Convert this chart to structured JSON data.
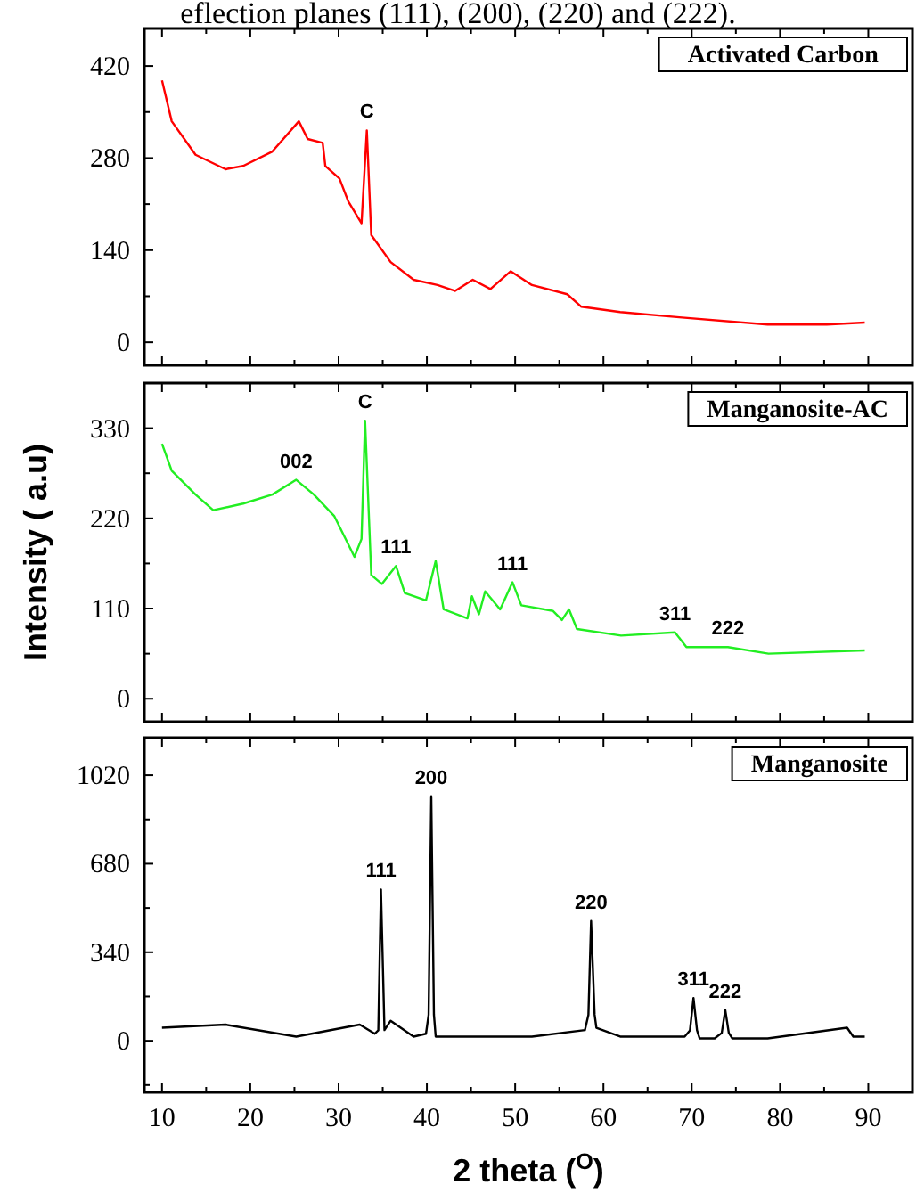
{
  "chart_data": [
    {
      "type": "line",
      "title": "Activated Carbon",
      "xlim": [
        8,
        95
      ],
      "ylim": [
        -35,
        477
      ],
      "xticks": [
        10,
        {
          "value": 15,
          "label": null
        },
        20,
        {
          "value": 25,
          "label": null
        },
        30,
        {
          "value": 35,
          "label": null
        },
        40,
        {
          "value": 45,
          "label": null
        },
        50,
        {
          "value": 55,
          "label": null
        },
        60,
        {
          "value": 65,
          "label": null
        },
        70,
        {
          "value": 75,
          "label": null
        },
        80,
        {
          "value": 85,
          "label": null
        },
        90
      ],
      "yticks": [
        0,
        {
          "value": 70,
          "label": null
        },
        140,
        {
          "value": 210,
          "label": null
        },
        280,
        {
          "value": 350,
          "label": null
        },
        420
      ],
      "tick_labels": "y",
      "marker": "none",
      "annotations": [
        "eflection planes (111), (200), (220) and (222).",
        {
          "text": "C",
          "x": 33.2,
          "y": 322
        }
      ],
      "series": [
        {
          "color": "#ff0000",
          "x": [
            10,
            11.1,
            13.8,
            17.2,
            19.2,
            22.5,
            25.5,
            26.5,
            28.2,
            28.5,
            30.1,
            31.1,
            32.6,
            33.2,
            33.7,
            35.9,
            38.5,
            41.2,
            43.2,
            45.2,
            47.2,
            49.5,
            51.9,
            55.9,
            57.5,
            61.9,
            68.6,
            78.6,
            85.3,
            89.6
          ],
          "values": [
            398,
            336,
            285,
            263,
            268,
            290,
            336,
            309,
            303,
            268,
            249,
            214,
            181,
            322,
            163,
            122,
            95,
            87,
            78,
            95,
            81,
            108,
            87,
            73,
            54,
            46,
            38,
            27,
            27,
            30
          ]
        }
      ]
    },
    {
      "type": "line",
      "title": "Manganosite-AC",
      "ylabel": "Intensity ( a.u)",
      "xlim": [
        8,
        95
      ],
      "ylim": [
        -28,
        385
      ],
      "xticks": [
        10,
        {
          "value": 15,
          "label": null
        },
        20,
        {
          "value": 25,
          "label": null
        },
        30,
        {
          "value": 35,
          "label": null
        },
        40,
        {
          "value": 45,
          "label": null
        },
        50,
        {
          "value": 55,
          "label": null
        },
        60,
        {
          "value": 65,
          "label": null
        },
        70,
        {
          "value": 75,
          "label": null
        },
        80,
        {
          "value": 85,
          "label": null
        },
        90
      ],
      "yticks": [
        0,
        {
          "value": 55,
          "label": null
        },
        110,
        {
          "value": 165,
          "label": null
        },
        220,
        {
          "value": 275,
          "label": null
        },
        330
      ],
      "tick_labels": "y",
      "marker": "none",
      "annotations": [
        {
          "text": "C",
          "x": 33,
          "y": 339
        },
        {
          "text": "002",
          "x": 25.2,
          "y": 267
        },
        {
          "text": "111",
          "x": 36.5,
          "y": 162
        },
        {
          "text": "111",
          "x": 49.7,
          "y": 142
        },
        {
          "text": "311",
          "x": 68.1,
          "y": 81
        },
        {
          "text": "222",
          "x": 74.1,
          "y": 63
        }
      ],
      "series": [
        {
          "color": "#22ee22",
          "x": [
            10,
            11.1,
            13.8,
            15.8,
            19.2,
            22.5,
            25.2,
            27.2,
            29.5,
            31.8,
            32.6,
            33,
            33.7,
            34.9,
            36.5,
            37.5,
            39.9,
            41,
            41.9,
            44.6,
            45.1,
            45.9,
            46.6,
            48.3,
            49.7,
            50.7,
            54.3,
            55.3,
            56.1,
            57,
            62,
            68.1,
            69.4,
            74.1,
            78.7,
            89.6
          ],
          "values": [
            311,
            278,
            249,
            230,
            238,
            249,
            267,
            249,
            223,
            173,
            195,
            339,
            151,
            140,
            162,
            129,
            120,
            168,
            109,
            98,
            125,
            103,
            131,
            109,
            142,
            114,
            107,
            96,
            109,
            85,
            77,
            81,
            63,
            63,
            55,
            59
          ]
        }
      ]
    },
    {
      "type": "line",
      "title": "Manganosite",
      "xlabel": "2 theta ($^{O}$)",
      "xlim": [
        8,
        95
      ],
      "ylim": [
        -198,
        1164
      ],
      "xticks": [
        10,
        {
          "value": 15,
          "label": null
        },
        20,
        {
          "value": 25,
          "label": null
        },
        30,
        {
          "value": 35,
          "label": null
        },
        40,
        {
          "value": 45,
          "label": null
        },
        50,
        {
          "value": 55,
          "label": null
        },
        60,
        {
          "value": 65,
          "label": null
        },
        70,
        {
          "value": 75,
          "label": null
        },
        80,
        {
          "value": 85,
          "label": null
        },
        90
      ],
      "yticks": [
        {
          "value": -170,
          "label": null
        },
        0,
        {
          "value": 170,
          "label": null
        },
        340,
        {
          "value": 510,
          "label": null
        },
        680,
        {
          "value": 850,
          "label": null
        },
        1020
      ],
      "marker": "none",
      "annotations": [
        {
          "text": "111",
          "x": 34.8,
          "y": 581
        },
        {
          "text": "200",
          "x": 40.5,
          "y": 939
        },
        {
          "text": "220",
          "x": 58.6,
          "y": 460
        },
        {
          "text": "311",
          "x": 70.2,
          "y": 164
        },
        {
          "text": "222",
          "x": 73.8,
          "y": 118
        }
      ],
      "series": [
        {
          "color": "#000000",
          "x": [
            10,
            17.2,
            25.2,
            32.4,
            34.1,
            34.5,
            34.8,
            35.2,
            35.9,
            38.5,
            39.9,
            40.2,
            40.5,
            40.8,
            41,
            45.2,
            51.9,
            57.9,
            58.3,
            58.6,
            59,
            59.2,
            61.9,
            69.2,
            69.8,
            70.2,
            70.6,
            70.9,
            72.6,
            73.4,
            73.8,
            74.2,
            74.6,
            78.6,
            87.6,
            88.3,
            89.6
          ],
          "values": [
            50,
            62,
            16,
            62,
            27,
            40,
            581,
            41,
            77,
            16,
            27,
            100,
            939,
            100,
            16,
            16,
            16,
            41,
            100,
            460,
            100,
            50,
            16,
            16,
            40,
            164,
            40,
            9,
            9,
            30,
            118,
            30,
            9,
            9,
            50,
            16,
            16
          ]
        }
      ]
    }
  ]
}
